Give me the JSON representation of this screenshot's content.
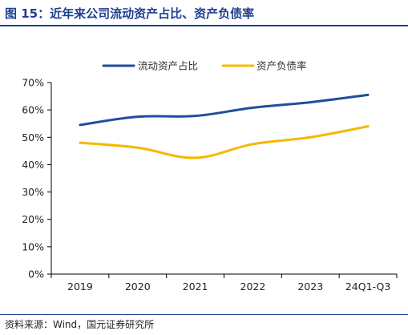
{
  "figure": {
    "title": "图 15：近年来公司流动资产占比、资产负债率",
    "source": "资料来源：Wind，国元证券研究所"
  },
  "colors": {
    "title": "#1f3f8f",
    "series_current_assets": "#1f4e9c",
    "series_debt_ratio": "#f5b800",
    "grid": "#d9d9d9"
  },
  "chart_data": {
    "type": "line",
    "categories": [
      "2019",
      "2020",
      "2021",
      "2022",
      "2023",
      "24Q1-Q3"
    ],
    "series": [
      {
        "name": "流动资产占比",
        "values": [
          54.5,
          57.5,
          57.8,
          60.8,
          62.8,
          65.5
        ]
      },
      {
        "name": "资产负债率",
        "values": [
          48.0,
          46.2,
          42.5,
          47.5,
          50.0,
          54.0
        ]
      }
    ],
    "yticks": [
      "0%",
      "10%",
      "20%",
      "30%",
      "40%",
      "50%",
      "60%",
      "70%"
    ],
    "ylim": [
      0,
      70
    ],
    "grid": false,
    "legend_position": "top-center",
    "smooth": true
  }
}
